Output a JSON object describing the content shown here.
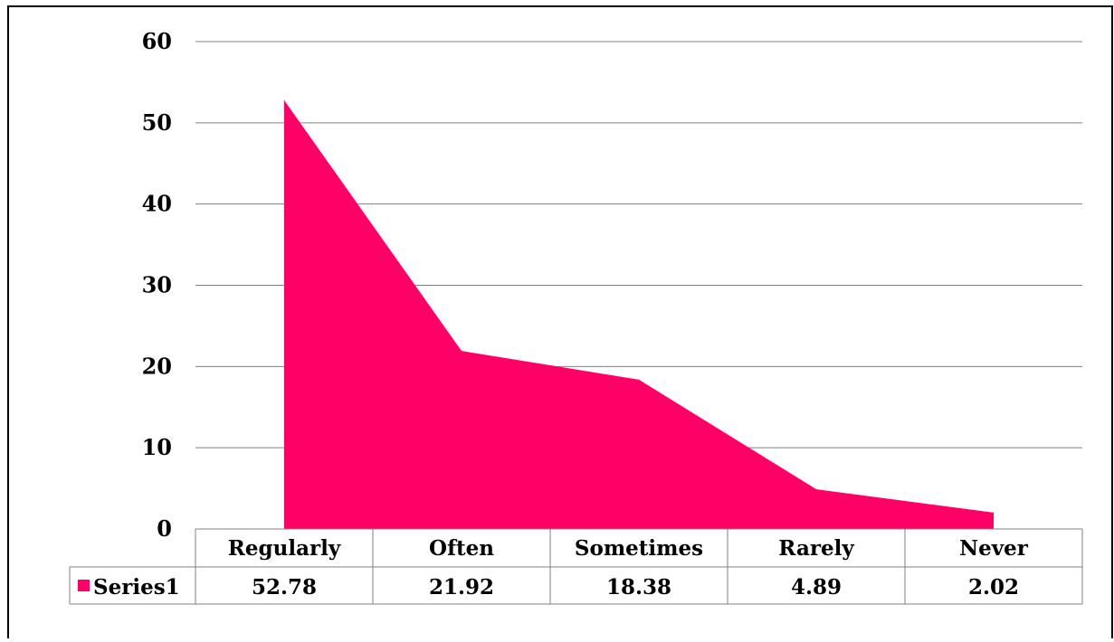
{
  "chart_data": {
    "type": "area",
    "categories": [
      "Regularly",
      "Often",
      "Sometimes",
      "Rarely",
      "Never"
    ],
    "series": [
      {
        "name": "Series1",
        "values": [
          52.78,
          21.92,
          18.38,
          4.89,
          2.02
        ],
        "value_labels": [
          "52.78",
          "21.92",
          "18.38",
          "4.89",
          "2.02"
        ],
        "color": "#FF0066"
      }
    ],
    "ylim": [
      0,
      60
    ],
    "yticks": [
      0,
      10,
      20,
      30,
      40,
      50,
      60
    ],
    "ytick_labels": [
      "0",
      "10",
      "20",
      "30",
      "40",
      "50",
      "60"
    ],
    "grid": true,
    "legend": "data-table",
    "title": "",
    "xlabel": "",
    "ylabel": ""
  }
}
